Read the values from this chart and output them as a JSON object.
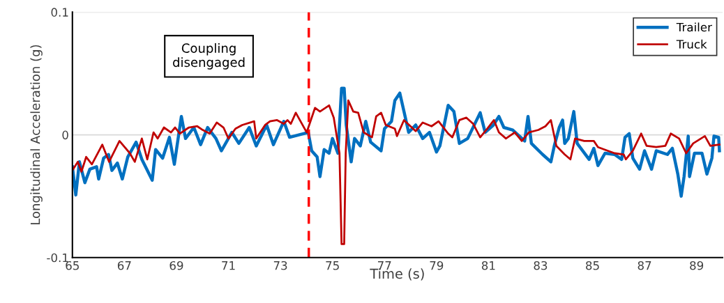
{
  "chart_data": {
    "type": "line",
    "xlabel": "Time (s)",
    "ylabel": "Longitudinal Acceleration (g)",
    "xlim": [
      65,
      90
    ],
    "xticks": [
      65,
      67,
      69,
      71,
      73,
      75,
      77,
      79,
      81,
      83,
      85,
      87,
      89
    ],
    "ylim": [
      -0.1,
      0.1
    ],
    "yticks": [
      {
        "value": 0.1,
        "label": "0.1"
      },
      0,
      {
        "value": -0.1,
        "label": "-0.1"
      }
    ],
    "grid": "y",
    "legend": "top right",
    "annotations": [
      "Coupling\ndisengaged"
    ],
    "ref_lines": [
      {
        "axis": "x",
        "value": 74.09,
        "label": null,
        "color": "#ff0000",
        "line_style": "dashed"
      }
    ],
    "series": [
      {
        "name": "Trailer",
        "color": "#0070c0",
        "x": [
          65.0,
          65.13,
          65.27,
          65.48,
          65.67,
          65.93,
          66.01,
          66.2,
          66.39,
          66.52,
          66.73,
          66.92,
          67.13,
          67.45,
          67.67,
          68.07,
          68.2,
          68.47,
          68.73,
          68.92,
          69.19,
          69.35,
          69.67,
          69.93,
          70.2,
          70.52,
          70.73,
          71.13,
          71.4,
          71.8,
          72.07,
          72.47,
          72.73,
          73.13,
          73.35,
          74.07,
          74.2,
          74.41,
          74.52,
          74.68,
          74.87,
          75.0,
          75.21,
          75.35,
          75.45,
          75.53,
          75.72,
          75.85,
          76.07,
          76.28,
          76.47,
          76.87,
          77.0,
          77.27,
          77.4,
          77.59,
          77.75,
          77.93,
          78.2,
          78.47,
          78.73,
          79.0,
          79.13,
          79.45,
          79.67,
          79.88,
          80.2,
          80.68,
          80.87,
          81.19,
          81.4,
          81.59,
          81.93,
          82.39,
          82.52,
          82.65,
          83.08,
          83.4,
          83.53,
          83.72,
          83.85,
          83.93,
          84.07,
          84.28,
          84.41,
          84.87,
          85.05,
          85.21,
          85.48,
          85.85,
          86.12,
          86.25,
          86.41,
          86.55,
          86.81,
          87.0,
          87.27,
          87.45,
          87.88,
          88.07,
          88.28,
          88.41,
          88.52,
          88.68,
          88.73,
          88.92,
          89.21,
          89.4,
          89.59,
          89.67,
          89.85,
          89.88
        ],
        "values": [
          -0.026,
          -0.049,
          -0.022,
          -0.039,
          -0.028,
          -0.026,
          -0.036,
          -0.019,
          -0.016,
          -0.029,
          -0.023,
          -0.036,
          -0.018,
          -0.006,
          -0.02,
          -0.037,
          -0.012,
          -0.019,
          -0.002,
          -0.024,
          0.015,
          -0.003,
          0.006,
          -0.008,
          0.006,
          -0.003,
          -0.013,
          0.002,
          -0.007,
          0.006,
          -0.009,
          0.008,
          -0.008,
          0.011,
          -0.002,
          0.002,
          -0.013,
          -0.018,
          -0.034,
          -0.012,
          -0.015,
          -0.003,
          -0.015,
          0.038,
          0.038,
          0.008,
          -0.022,
          -0.003,
          -0.009,
          0.011,
          -0.006,
          -0.013,
          0.005,
          0.011,
          0.028,
          0.034,
          0.019,
          0.002,
          0.008,
          -0.003,
          0.002,
          -0.014,
          -0.009,
          0.024,
          0.019,
          -0.007,
          -0.003,
          0.018,
          0.002,
          0.008,
          0.015,
          0.006,
          0.004,
          -0.005,
          0.015,
          -0.007,
          -0.016,
          -0.022,
          -0.009,
          0.006,
          0.012,
          -0.007,
          -0.003,
          0.019,
          -0.007,
          -0.02,
          -0.011,
          -0.025,
          -0.015,
          -0.016,
          -0.02,
          -0.002,
          0.001,
          -0.019,
          -0.028,
          -0.013,
          -0.028,
          -0.013,
          -0.016,
          -0.011,
          -0.032,
          -0.05,
          -0.034,
          -0.001,
          -0.034,
          -0.015,
          -0.015,
          -0.032,
          -0.019,
          -0.001,
          -0.002,
          -0.013
        ]
      },
      {
        "name": "Truck",
        "color": "#c00000",
        "x": [
          65.0,
          65.21,
          65.35,
          65.53,
          65.75,
          66.15,
          66.41,
          66.81,
          67.21,
          67.4,
          67.67,
          67.88,
          68.12,
          68.28,
          68.52,
          68.79,
          68.95,
          69.13,
          69.48,
          69.8,
          70.01,
          70.28,
          70.55,
          70.81,
          71.0,
          71.27,
          71.53,
          71.99,
          72.07,
          72.41,
          72.6,
          72.87,
          73.13,
          73.27,
          73.4,
          73.59,
          74.01,
          74.33,
          74.52,
          74.87,
          75.05,
          75.27,
          75.35,
          75.45,
          75.51,
          75.61,
          75.8,
          75.99,
          76.2,
          76.52,
          76.68,
          76.87,
          77.05,
          77.4,
          77.48,
          77.75,
          78.2,
          78.47,
          78.81,
          79.08,
          79.45,
          79.61,
          79.88,
          80.15,
          80.41,
          80.68,
          80.95,
          81.21,
          81.4,
          81.67,
          82.01,
          82.28,
          82.55,
          82.92,
          83.19,
          83.4,
          83.61,
          83.93,
          84.15,
          84.33,
          84.68,
          85.05,
          85.21,
          85.59,
          85.85,
          86.2,
          86.28,
          86.55,
          86.87,
          87.08,
          87.45,
          87.8,
          88.01,
          88.33,
          88.6,
          88.87,
          89.32,
          89.53,
          89.88
        ],
        "values": [
          -0.029,
          -0.022,
          -0.03,
          -0.018,
          -0.024,
          -0.008,
          -0.022,
          -0.005,
          -0.015,
          -0.022,
          -0.003,
          -0.02,
          0.002,
          -0.003,
          0.006,
          0.002,
          0.006,
          0.001,
          0.006,
          0.007,
          0.004,
          0.001,
          0.01,
          0.006,
          -0.003,
          0.005,
          0.008,
          0.011,
          -0.003,
          0.008,
          0.011,
          0.012,
          0.009,
          0.012,
          0.009,
          0.018,
          0.002,
          0.022,
          0.019,
          0.024,
          0.014,
          -0.015,
          -0.089,
          -0.089,
          -0.015,
          0.028,
          0.019,
          0.018,
          0.002,
          -0.002,
          0.015,
          0.018,
          0.008,
          0.005,
          -0.001,
          0.012,
          0.003,
          0.01,
          0.007,
          0.011,
          0.001,
          -0.002,
          0.012,
          0.014,
          0.009,
          -0.002,
          0.005,
          0.012,
          0.002,
          -0.003,
          0.002,
          -0.005,
          0.002,
          0.004,
          0.007,
          0.012,
          -0.009,
          -0.016,
          -0.02,
          -0.003,
          -0.005,
          -0.005,
          -0.01,
          -0.013,
          -0.015,
          -0.016,
          -0.02,
          -0.013,
          0.001,
          -0.009,
          -0.01,
          -0.009,
          0.001,
          -0.003,
          -0.015,
          -0.007,
          -0.001,
          -0.009,
          -0.008
        ]
      }
    ]
  }
}
